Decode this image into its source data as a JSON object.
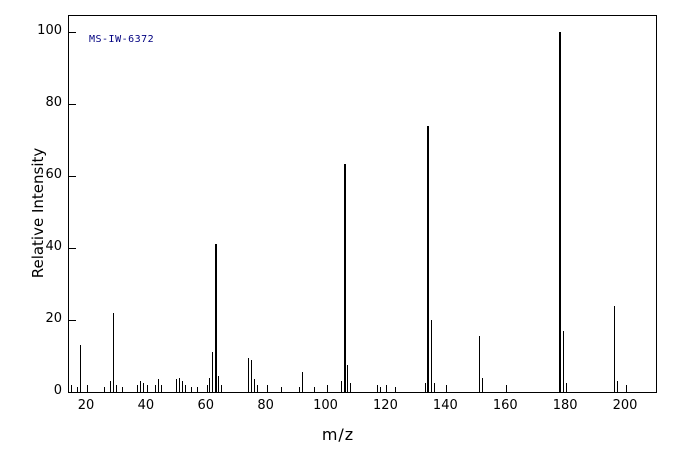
{
  "chart_data": {
    "type": "bar",
    "variant": "mass-spectrum",
    "annotation": "MS-IW-6372",
    "xlabel": "m/z",
    "ylabel": "Relative Intensity",
    "xlim": [
      14,
      210
    ],
    "ylim": [
      0,
      104.5
    ],
    "x_ticks": [
      20,
      40,
      60,
      80,
      100,
      120,
      140,
      160,
      180,
      200
    ],
    "y_ticks": [
      0,
      20,
      40,
      60,
      80,
      100
    ],
    "grid": false,
    "legend": false,
    "peaks_mz_intensity": [
      [
        15,
        2
      ],
      [
        17,
        1.5
      ],
      [
        18,
        13
      ],
      [
        26,
        1.5
      ],
      [
        28,
        3
      ],
      [
        29,
        22
      ],
      [
        30,
        2
      ],
      [
        32,
        1.5
      ],
      [
        37,
        2
      ],
      [
        38,
        3
      ],
      [
        39,
        2.5
      ],
      [
        43,
        2
      ],
      [
        44,
        3.5
      ],
      [
        45,
        2
      ],
      [
        50,
        3.5
      ],
      [
        51,
        4
      ],
      [
        52,
        3
      ],
      [
        53,
        2
      ],
      [
        55,
        1.5
      ],
      [
        57,
        1.5
      ],
      [
        61,
        4
      ],
      [
        62,
        11
      ],
      [
        63,
        41
      ],
      [
        64,
        4.5
      ],
      [
        65,
        2
      ],
      [
        74,
        9.5
      ],
      [
        75,
        9
      ],
      [
        76,
        3.5
      ],
      [
        77,
        2
      ],
      [
        85,
        1.5
      ],
      [
        91,
        1.5
      ],
      [
        92,
        5.5
      ],
      [
        96,
        1.5
      ],
      [
        105,
        3
      ],
      [
        106,
        63.5
      ],
      [
        107,
        7.5
      ],
      [
        108,
        2.5
      ],
      [
        117,
        2
      ],
      [
        118,
        1.5
      ],
      [
        123,
        1.5
      ],
      [
        133,
        2.5
      ],
      [
        134,
        74
      ],
      [
        135,
        20
      ],
      [
        136,
        2.5
      ],
      [
        151,
        15.5
      ],
      [
        152,
        4
      ],
      [
        178,
        100
      ],
      [
        179,
        17
      ],
      [
        180,
        2.5
      ],
      [
        196,
        24
      ],
      [
        197,
        3
      ]
    ]
  },
  "colors": {
    "background": "#ffffff",
    "axis": "#000000",
    "bar": "#000000",
    "annotation": "#000080"
  }
}
